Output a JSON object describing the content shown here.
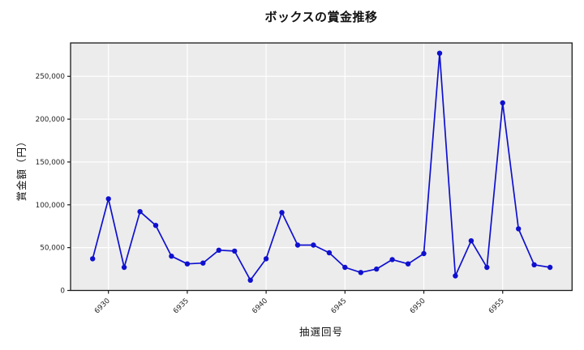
{
  "title": "ボックスの賞金推移",
  "chart_data": {
    "type": "line",
    "title": "ボックスの賞金推移",
    "xlabel": "抽選回号",
    "ylabel": "賞金額（円）",
    "x": [
      6929,
      6930,
      6931,
      6932,
      6933,
      6934,
      6935,
      6936,
      6937,
      6938,
      6939,
      6940,
      6941,
      6942,
      6943,
      6944,
      6945,
      6946,
      6947,
      6948,
      6949,
      6950,
      6951,
      6952,
      6953,
      6954,
      6955,
      6956,
      6957,
      6958
    ],
    "values": [
      37000,
      107000,
      27000,
      92000,
      76000,
      40000,
      31000,
      32000,
      47000,
      46000,
      12000,
      37000,
      91000,
      53000,
      53000,
      44000,
      27000,
      21000,
      25000,
      36000,
      31000,
      43000,
      277000,
      17000,
      58000,
      27000,
      219000,
      72000,
      30000,
      27000
    ],
    "x_ticks": [
      6930,
      6935,
      6940,
      6945,
      6950,
      6955
    ],
    "x_tick_labels": [
      "6930",
      "6935",
      "6940",
      "6945",
      "6950",
      "6955"
    ],
    "y_ticks": [
      0,
      50000,
      100000,
      150000,
      200000,
      250000
    ],
    "y_tick_labels": [
      "0",
      "50,000",
      "100,000",
      "150,000",
      "200,000",
      "250,000"
    ],
    "xlim": [
      6927.6,
      6959.4
    ],
    "ylim": [
      0,
      289000
    ],
    "grid": true,
    "legend": "none",
    "line_color": "#0f10cf",
    "marker_color": "#0f10cf",
    "marker": "circle",
    "plot_bg": "#ececec",
    "grid_color": "#ffffff",
    "spine_color": "#1a1a1a",
    "tick_color": "#262626",
    "fig_bg": "#ffffff"
  }
}
